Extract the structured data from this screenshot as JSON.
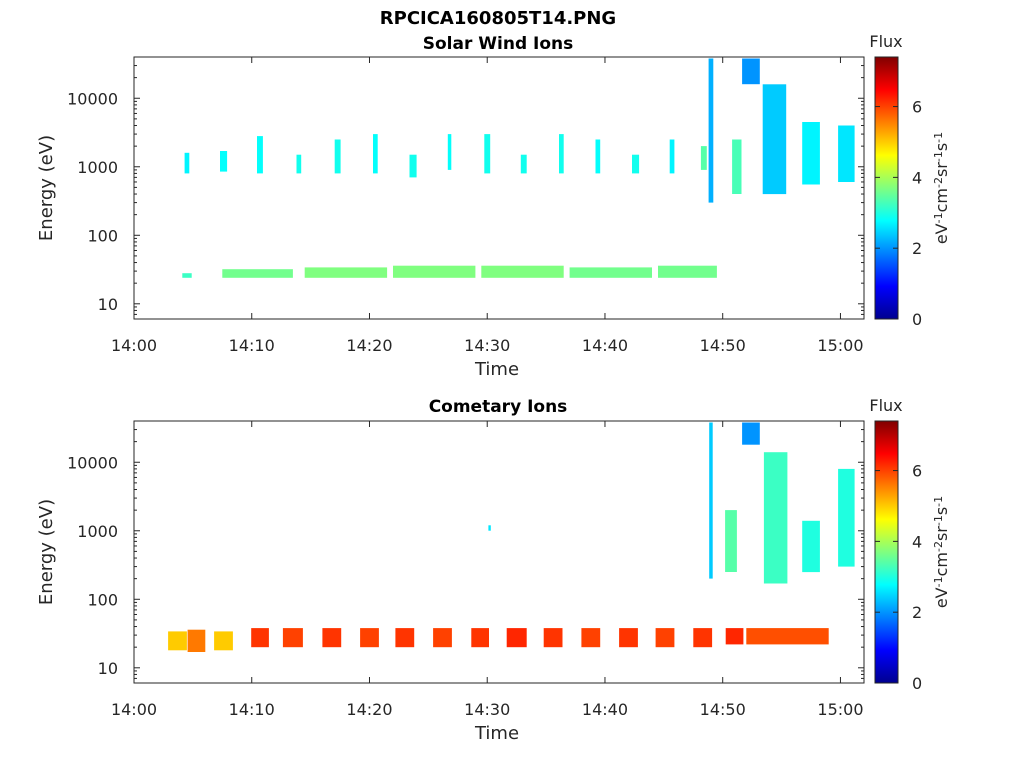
{
  "figure": {
    "title": "RPCICA160805T14.PNG"
  },
  "colorbar": {
    "label": "Flux",
    "unit_parts": [
      "eV",
      "-1",
      "cm",
      "-2",
      "sr",
      "-1",
      "s",
      "-1"
    ],
    "ticks": [
      0,
      2,
      4,
      6
    ],
    "range": [
      0,
      7.4
    ],
    "colormap": "jet"
  },
  "chart_data": [
    {
      "type": "heatmap",
      "title": "Solar Wind Ions",
      "xlabel": "Time",
      "ylabel": "Energy (eV)",
      "xscale": "time",
      "yscale": "log",
      "xlim": [
        "14:00",
        "15:02"
      ],
      "ylim": [
        6,
        40000
      ],
      "xticks": [
        "14:00",
        "14:10",
        "14:20",
        "14:30",
        "14:40",
        "14:50",
        "15:00"
      ],
      "yticks": [
        10,
        100,
        1000,
        10000
      ],
      "ytick_labels": [
        "10",
        "100",
        "1000",
        "10000"
      ],
      "cells": [
        [
          "14:04.5",
          0.4,
          800,
          1600,
          2.7
        ],
        [
          "14:07.6",
          0.6,
          850,
          1700,
          2.8
        ],
        [
          "14:10.7",
          0.5,
          800,
          2800,
          2.8
        ],
        [
          "14:14.0",
          0.4,
          800,
          1500,
          2.9
        ],
        [
          "14:17.3",
          0.5,
          800,
          2500,
          2.9
        ],
        [
          "14:20.5",
          0.4,
          800,
          3000,
          2.8
        ],
        [
          "14:23.7",
          0.6,
          700,
          1500,
          2.9
        ],
        [
          "14:26.8",
          0.3,
          900,
          3000,
          2.8
        ],
        [
          "14:30.0",
          0.5,
          800,
          3000,
          2.9
        ],
        [
          "14:33.1",
          0.5,
          800,
          1500,
          2.9
        ],
        [
          "14:36.3",
          0.4,
          800,
          3000,
          2.9
        ],
        [
          "14:39.4",
          0.4,
          800,
          2500,
          2.8
        ],
        [
          "14:42.6",
          0.6,
          800,
          1500,
          2.9
        ],
        [
          "14:45.7",
          0.4,
          800,
          2500,
          2.7
        ],
        [
          "14:48.4",
          0.5,
          900,
          2000,
          3.4
        ],
        [
          "14:49.0",
          0.4,
          300,
          38000,
          2.2
        ],
        [
          "14:51.2",
          0.8,
          400,
          2500,
          3.3
        ],
        [
          "14:52.4",
          1.5,
          16000,
          38000,
          2.0
        ],
        [
          "14:54.4",
          2.0,
          400,
          16000,
          2.4
        ],
        [
          "14:57.5",
          1.5,
          550,
          4500,
          2.7
        ],
        [
          "15:00.5",
          1.4,
          600,
          4000,
          2.6
        ],
        [
          "14:04.5",
          0.8,
          24,
          28,
          3.2
        ],
        [
          "14:10.5",
          6.0,
          24,
          32,
          3.6
        ],
        [
          "14:18.0",
          7.0,
          24,
          34,
          3.7
        ],
        [
          "14:25.5",
          7.0,
          24,
          36,
          3.7
        ],
        [
          "14:33.0",
          7.0,
          24,
          36,
          3.7
        ],
        [
          "14:40.5",
          7.0,
          24,
          34,
          3.6
        ],
        [
          "14:47.0",
          5.0,
          24,
          36,
          3.6
        ]
      ]
    },
    {
      "type": "heatmap",
      "title": "Cometary Ions",
      "xlabel": "Time",
      "ylabel": "Energy (eV)",
      "xscale": "time",
      "yscale": "log",
      "xlim": [
        "14:00",
        "15:02"
      ],
      "ylim": [
        6,
        40000
      ],
      "xticks": [
        "14:00",
        "14:10",
        "14:20",
        "14:30",
        "14:40",
        "14:50",
        "15:00"
      ],
      "yticks": [
        10,
        100,
        1000,
        10000
      ],
      "ytick_labels": [
        "10",
        "100",
        "1000",
        "10000"
      ],
      "cells": [
        [
          "14:03.7",
          1.6,
          18,
          34,
          5.0
        ],
        [
          "14:05.3",
          1.5,
          17,
          36,
          5.6
        ],
        [
          "14:07.6",
          1.6,
          18,
          34,
          5.0
        ],
        [
          "14:10.7",
          1.5,
          20,
          38,
          6.1
        ],
        [
          "14:13.5",
          1.7,
          20,
          38,
          6.0
        ],
        [
          "14:16.8",
          1.6,
          20,
          38,
          6.1
        ],
        [
          "14:20.0",
          1.6,
          20,
          38,
          6.0
        ],
        [
          "14:23.0",
          1.6,
          20,
          38,
          6.1
        ],
        [
          "14:26.2",
          1.6,
          20,
          38,
          6.0
        ],
        [
          "14:29.4",
          1.5,
          20,
          38,
          6.1
        ],
        [
          "14:32.5",
          1.7,
          20,
          38,
          6.2
        ],
        [
          "14:35.6",
          1.6,
          20,
          38,
          6.1
        ],
        [
          "14:38.8",
          1.6,
          20,
          38,
          6.0
        ],
        [
          "14:42.0",
          1.6,
          20,
          38,
          6.1
        ],
        [
          "14:45.1",
          1.6,
          20,
          38,
          6.0
        ],
        [
          "14:48.3",
          1.6,
          20,
          38,
          6.1
        ],
        [
          "14:51.0",
          1.5,
          22,
          38,
          6.2
        ],
        [
          "14:55.5",
          7.0,
          22,
          38,
          5.9
        ],
        [
          "14:49.0",
          0.3,
          200,
          38000,
          2.4
        ],
        [
          "14:50.7",
          1.0,
          250,
          2000,
          3.4
        ],
        [
          "14:52.4",
          1.5,
          18000,
          38000,
          2.0
        ],
        [
          "14:54.5",
          2.0,
          170,
          14000,
          3.2
        ],
        [
          "14:57.5",
          1.5,
          250,
          1400,
          3.0
        ],
        [
          "15:00.5",
          1.4,
          300,
          8000,
          3.0
        ],
        [
          "14:30.2",
          0.2,
          1000,
          1200,
          2.6
        ]
      ]
    }
  ]
}
